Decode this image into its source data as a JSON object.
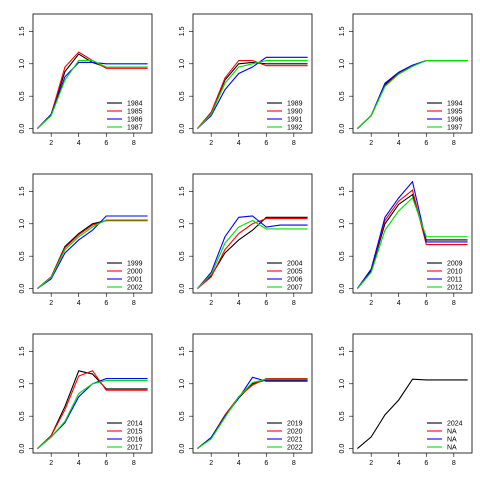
{
  "chart_data": [
    {
      "type": "line",
      "x": [
        1,
        2,
        3,
        4,
        5,
        6,
        7,
        8,
        9
      ],
      "xlim": [
        0.68,
        9.32
      ],
      "xticks": [
        2,
        4,
        6,
        8
      ],
      "ylim": [
        -0.068,
        1.768
      ],
      "yticks": [
        {
          "value": 0,
          "label": "0.0"
        },
        {
          "value": 0.5,
          "label": "0.5"
        },
        {
          "value": 1,
          "label": "1.0"
        },
        {
          "value": 1.5,
          "label": "1.5"
        }
      ],
      "legend": "bottomright",
      "series": [
        {
          "name": "1984",
          "color": "#000000",
          "values": [
            0,
            0.22,
            0.88,
            1.15,
            1.02,
            0.95,
            0.95,
            0.95,
            0.95
          ]
        },
        {
          "name": "1985",
          "color": "#ff0000",
          "values": [
            0,
            0.22,
            0.95,
            1.18,
            1.05,
            0.93,
            0.93,
            0.93,
            0.93
          ]
        },
        {
          "name": "1986",
          "color": "#0000ff",
          "values": [
            0,
            0.22,
            0.8,
            1.02,
            1.02,
            1.0,
            1.0,
            1.0,
            1.0
          ]
        },
        {
          "name": "1987",
          "color": "#00dd00",
          "values": [
            0,
            0.2,
            0.75,
            1.05,
            1.05,
            0.95,
            0.95,
            0.95,
            0.95
          ]
        }
      ]
    },
    {
      "type": "line",
      "x": [
        1,
        2,
        3,
        4,
        5,
        6,
        7,
        8,
        9
      ],
      "xlim": [
        0.68,
        9.32
      ],
      "xticks": [
        2,
        4,
        6,
        8
      ],
      "ylim": [
        -0.068,
        1.768
      ],
      "yticks": [
        {
          "value": 0,
          "label": "0.0"
        },
        {
          "value": 0.5,
          "label": "0.5"
        },
        {
          "value": 1,
          "label": "1.0"
        },
        {
          "value": 1.5,
          "label": "1.5"
        }
      ],
      "legend": "bottomright",
      "series": [
        {
          "name": "1989",
          "color": "#000000",
          "values": [
            0,
            0.25,
            0.75,
            1.0,
            1.02,
            1.0,
            1.0,
            1.0,
            1.0
          ]
        },
        {
          "name": "1990",
          "color": "#ff0000",
          "values": [
            0,
            0.25,
            0.78,
            1.05,
            1.05,
            0.97,
            0.97,
            0.97,
            0.97
          ]
        },
        {
          "name": "1991",
          "color": "#0000ff",
          "values": [
            0,
            0.2,
            0.6,
            0.85,
            0.95,
            1.1,
            1.1,
            1.1,
            1.1
          ]
        },
        {
          "name": "1992",
          "color": "#00dd00",
          "values": [
            0,
            0.22,
            0.7,
            0.95,
            1.0,
            1.05,
            1.05,
            1.05,
            1.05
          ]
        }
      ]
    },
    {
      "type": "line",
      "x": [
        1,
        2,
        3,
        4,
        5,
        6,
        7,
        8,
        9
      ],
      "xlim": [
        0.68,
        9.32
      ],
      "xticks": [
        2,
        4,
        6,
        8
      ],
      "ylim": [
        -0.068,
        1.768
      ],
      "yticks": [
        {
          "value": 0,
          "label": "0.0"
        },
        {
          "value": 0.5,
          "label": "0.5"
        },
        {
          "value": 1,
          "label": "1.0"
        },
        {
          "value": 1.5,
          "label": "1.5"
        }
      ],
      "legend": "bottomright",
      "series": [
        {
          "name": "1994",
          "color": "#000000",
          "values": [
            0,
            0.2,
            0.68,
            0.86,
            0.97,
            1.05,
            1.05,
            1.05,
            1.05
          ]
        },
        {
          "name": "1995",
          "color": "#ff0000",
          "values": [
            0,
            0.2,
            0.66,
            0.85,
            0.97,
            1.05,
            1.05,
            1.05,
            1.05
          ]
        },
        {
          "name": "1996",
          "color": "#0000ff",
          "values": [
            0,
            0.2,
            0.7,
            0.87,
            0.98,
            1.05,
            1.05,
            1.05,
            1.05
          ]
        },
        {
          "name": "1997",
          "color": "#00dd00",
          "values": [
            0,
            0.2,
            0.65,
            0.84,
            0.96,
            1.05,
            1.05,
            1.05,
            1.05
          ]
        }
      ]
    },
    {
      "type": "line",
      "x": [
        1,
        2,
        3,
        4,
        5,
        6,
        7,
        8,
        9
      ],
      "xlim": [
        0.68,
        9.32
      ],
      "xticks": [
        2,
        4,
        6,
        8
      ],
      "ylim": [
        -0.068,
        1.768
      ],
      "yticks": [
        {
          "value": 0,
          "label": "0.0"
        },
        {
          "value": 0.5,
          "label": "0.5"
        },
        {
          "value": 1,
          "label": "1.0"
        },
        {
          "value": 1.5,
          "label": "1.5"
        }
      ],
      "legend": "bottomright",
      "series": [
        {
          "name": "1999",
          "color": "#000000",
          "values": [
            0,
            0.18,
            0.65,
            0.85,
            1.0,
            1.05,
            1.05,
            1.05,
            1.05
          ]
        },
        {
          "name": "2000",
          "color": "#ff0000",
          "values": [
            0,
            0.18,
            0.63,
            0.83,
            0.98,
            1.05,
            1.05,
            1.05,
            1.05
          ]
        },
        {
          "name": "2001",
          "color": "#0000ff",
          "values": [
            0,
            0.15,
            0.55,
            0.75,
            0.9,
            1.12,
            1.12,
            1.12,
            1.12
          ]
        },
        {
          "name": "2002",
          "color": "#00dd00",
          "values": [
            0,
            0.17,
            0.6,
            0.8,
            0.95,
            1.06,
            1.06,
            1.06,
            1.06
          ]
        }
      ]
    },
    {
      "type": "line",
      "x": [
        1,
        2,
        3,
        4,
        5,
        6,
        7,
        8,
        9
      ],
      "xlim": [
        0.68,
        9.32
      ],
      "xticks": [
        2,
        4,
        6,
        8
      ],
      "ylim": [
        -0.068,
        1.768
      ],
      "yticks": [
        {
          "value": 0,
          "label": "0.0"
        },
        {
          "value": 0.5,
          "label": "0.5"
        },
        {
          "value": 1,
          "label": "1.0"
        },
        {
          "value": 1.5,
          "label": "1.5"
        }
      ],
      "legend": "bottomright",
      "series": [
        {
          "name": "2004",
          "color": "#000000",
          "values": [
            0,
            0.2,
            0.55,
            0.75,
            0.9,
            1.1,
            1.1,
            1.1,
            1.1
          ]
        },
        {
          "name": "2005",
          "color": "#ff0000",
          "values": [
            0,
            0.18,
            0.6,
            0.85,
            1.0,
            1.08,
            1.08,
            1.08,
            1.08
          ]
        },
        {
          "name": "2006",
          "color": "#0000ff",
          "values": [
            0,
            0.25,
            0.8,
            1.1,
            1.12,
            0.95,
            0.98,
            0.98,
            0.98
          ]
        },
        {
          "name": "2007",
          "color": "#00dd00",
          "values": [
            0,
            0.22,
            0.7,
            0.95,
            1.05,
            0.92,
            0.92,
            0.92,
            0.92
          ]
        }
      ]
    },
    {
      "type": "line",
      "x": [
        1,
        2,
        3,
        4,
        5,
        6,
        7,
        8,
        9
      ],
      "xlim": [
        0.68,
        9.32
      ],
      "xticks": [
        2,
        4,
        6,
        8
      ],
      "ylim": [
        -0.068,
        1.768
      ],
      "yticks": [
        {
          "value": 0,
          "label": "0.0"
        },
        {
          "value": 0.5,
          "label": "0.5"
        },
        {
          "value": 1,
          "label": "1.0"
        },
        {
          "value": 1.5,
          "label": "1.5"
        }
      ],
      "legend": "bottomright",
      "series": [
        {
          "name": "2009",
          "color": "#000000",
          "values": [
            0,
            0.28,
            1.0,
            1.3,
            1.45,
            0.75,
            0.75,
            0.75,
            0.75
          ]
        },
        {
          "name": "2010",
          "color": "#ff0000",
          "values": [
            0,
            0.3,
            1.05,
            1.35,
            1.52,
            0.68,
            0.68,
            0.68,
            0.68
          ]
        },
        {
          "name": "2011",
          "color": "#0000ff",
          "values": [
            0,
            0.3,
            1.1,
            1.4,
            1.65,
            0.72,
            0.72,
            0.72,
            0.72
          ]
        },
        {
          "name": "2012",
          "color": "#00dd00",
          "values": [
            0,
            0.25,
            0.9,
            1.2,
            1.4,
            0.8,
            0.8,
            0.8,
            0.8
          ]
        }
      ]
    },
    {
      "type": "line",
      "x": [
        1,
        2,
        3,
        4,
        5,
        6,
        7,
        8,
        9
      ],
      "xlim": [
        0.68,
        9.32
      ],
      "xticks": [
        2,
        4,
        6,
        8
      ],
      "ylim": [
        -0.068,
        1.768
      ],
      "yticks": [
        {
          "value": 0,
          "label": "0.0"
        },
        {
          "value": 0.5,
          "label": "0.5"
        },
        {
          "value": 1,
          "label": "1.0"
        },
        {
          "value": 1.5,
          "label": "1.5"
        }
      ],
      "legend": "bottomright",
      "series": [
        {
          "name": "2014",
          "color": "#000000",
          "values": [
            0,
            0.2,
            0.65,
            1.2,
            1.15,
            0.92,
            0.92,
            0.92,
            0.92
          ]
        },
        {
          "name": "2015",
          "color": "#ff0000",
          "values": [
            0,
            0.2,
            0.6,
            1.12,
            1.2,
            0.9,
            0.9,
            0.9,
            0.9
          ]
        },
        {
          "name": "2016",
          "color": "#0000ff",
          "values": [
            0,
            0.18,
            0.4,
            0.8,
            1.0,
            1.08,
            1.08,
            1.08,
            1.08
          ]
        },
        {
          "name": "2017",
          "color": "#00dd00",
          "values": [
            0,
            0.18,
            0.42,
            0.85,
            1.0,
            1.05,
            1.05,
            1.05,
            1.05
          ]
        }
      ]
    },
    {
      "type": "line",
      "x": [
        1,
        2,
        3,
        4,
        5,
        6,
        7,
        8,
        9
      ],
      "xlim": [
        0.68,
        9.32
      ],
      "xticks": [
        2,
        4,
        6,
        8
      ],
      "ylim": [
        -0.068,
        1.768
      ],
      "yticks": [
        {
          "value": 0,
          "label": "0.0"
        },
        {
          "value": 0.5,
          "label": "0.5"
        },
        {
          "value": 1,
          "label": "1.0"
        },
        {
          "value": 1.5,
          "label": "1.5"
        }
      ],
      "legend": "bottomright",
      "series": [
        {
          "name": "2019",
          "color": "#000000",
          "values": [
            0,
            0.17,
            0.5,
            0.78,
            1.0,
            1.06,
            1.06,
            1.06,
            1.06
          ]
        },
        {
          "name": "2020",
          "color": "#ff0000",
          "values": [
            0,
            0.17,
            0.52,
            0.8,
            0.98,
            1.08,
            1.08,
            1.08,
            1.08
          ]
        },
        {
          "name": "2021",
          "color": "#0000ff",
          "values": [
            0,
            0.17,
            0.5,
            0.78,
            1.1,
            1.04,
            1.04,
            1.04,
            1.04
          ]
        },
        {
          "name": "2022",
          "color": "#00dd00",
          "values": [
            0,
            0.15,
            0.48,
            0.8,
            1.02,
            1.07,
            1.07,
            1.07,
            1.07
          ]
        }
      ]
    },
    {
      "type": "line",
      "x": [
        1,
        2,
        3,
        4,
        5,
        6,
        7,
        8,
        9
      ],
      "xlim": [
        0.68,
        9.32
      ],
      "xticks": [
        2,
        4,
        6,
        8
      ],
      "ylim": [
        -0.068,
        1.768
      ],
      "yticks": [
        {
          "value": 0,
          "label": "0.0"
        },
        {
          "value": 0.5,
          "label": "0.5"
        },
        {
          "value": 1,
          "label": "1.0"
        },
        {
          "value": 1.5,
          "label": "1.5"
        }
      ],
      "legend": "bottomright",
      "series": [
        {
          "name": "2024",
          "color": "#000000",
          "values": [
            0,
            0.18,
            0.52,
            0.75,
            1.07,
            1.06,
            1.06,
            1.06,
            1.06
          ]
        },
        {
          "name": "NA",
          "color": "#ff0000",
          "values": [
            null,
            null,
            null,
            null,
            null,
            null,
            null,
            null,
            null
          ]
        },
        {
          "name": "NA",
          "color": "#0000ff",
          "values": [
            null,
            null,
            null,
            null,
            null,
            null,
            null,
            null,
            null
          ]
        },
        {
          "name": "NA",
          "color": "#00dd00",
          "values": [
            null,
            null,
            null,
            null,
            null,
            null,
            null,
            null,
            null
          ]
        }
      ]
    }
  ]
}
